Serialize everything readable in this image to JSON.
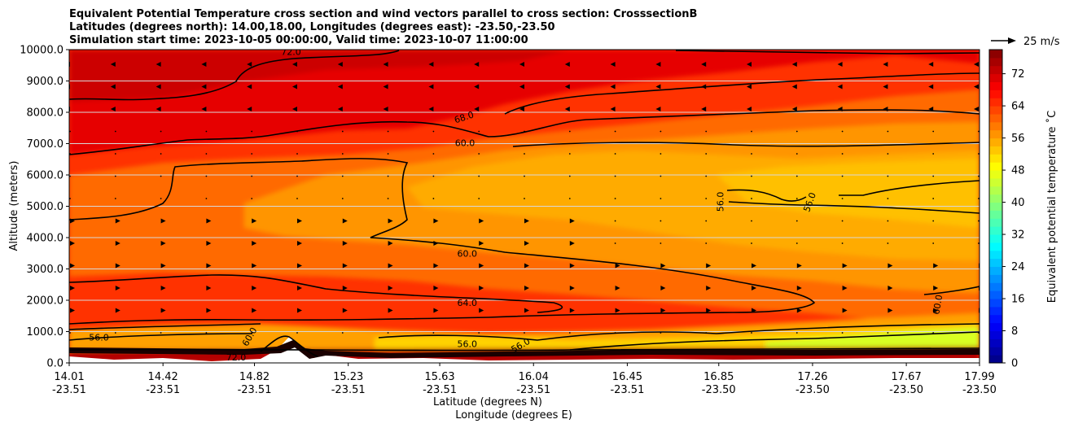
{
  "chart_data": {
    "type": "heatmap",
    "title": [
      "Equivalent Potential Temperature cross section and wind vectors parallel to cross section: CrosssectionB",
      "Latitudes (degrees north): 14.00,18.00, Longitudes (degrees east): -23.50,-23.50",
      "Simulation start time: 2023-10-05 00:00:00, Valid time: 2023-10-07 11:00:00"
    ],
    "xlabel": "Latitude (degrees N)",
    "xlabel2": "Longitude (degrees E)",
    "ylabel": "Altitude (meters)",
    "x_ticks": [
      {
        "lat": "14.01",
        "lon": "-23.51"
      },
      {
        "lat": "14.42",
        "lon": "-23.51"
      },
      {
        "lat": "14.82",
        "lon": "-23.51"
      },
      {
        "lat": "15.23",
        "lon": "-23.51"
      },
      {
        "lat": "15.63",
        "lon": "-23.51"
      },
      {
        "lat": "16.04",
        "lon": "-23.51"
      },
      {
        "lat": "16.45",
        "lon": "-23.51"
      },
      {
        "lat": "16.85",
        "lon": "-23.50"
      },
      {
        "lat": "17.26",
        "lon": "-23.50"
      },
      {
        "lat": "17.67",
        "lon": "-23.50"
      },
      {
        "lat": "17.99",
        "lon": "-23.50"
      }
    ],
    "y_ticks": [
      "0.0",
      "1000.0",
      "2000.0",
      "3000.0",
      "4000.0",
      "5000.0",
      "6000.0",
      "7000.0",
      "8000.0",
      "9000.0",
      "10000.0"
    ],
    "ylim": [
      0,
      10000
    ],
    "grid": "horizontal",
    "colorbar": {
      "label": "Equivalent potential temperature ˚C",
      "ticks": [
        "0",
        "8",
        "16",
        "24",
        "32",
        "40",
        "48",
        "56",
        "64",
        "72"
      ],
      "range": [
        0,
        78
      ],
      "step": 2,
      "colormap": "jet"
    },
    "quiver_key": {
      "label": "25 m/s"
    },
    "contour_labels": [
      {
        "text": "72.0",
        "x": 14.98,
        "y": 9930,
        "rot": 0
      },
      {
        "text": "68.0",
        "x": 15.74,
        "y": 7850,
        "rot": -18
      },
      {
        "text": "60.0",
        "x": 15.74,
        "y": 7030,
        "rot": 0
      },
      {
        "text": "56.0",
        "x": 16.87,
        "y": 5250,
        "rot": -90
      },
      {
        "text": "56.0",
        "x": 17.26,
        "y": 5200,
        "rot": -70
      },
      {
        "text": "60.0",
        "x": 15.75,
        "y": 3500,
        "rot": 0
      },
      {
        "text": "64.0",
        "x": 15.75,
        "y": 1920,
        "rot": 0
      },
      {
        "text": "60.0",
        "x": 17.82,
        "y": 1950,
        "rot": -80
      },
      {
        "text": "56.0",
        "x": 14.14,
        "y": 820,
        "rot": 0
      },
      {
        "text": "60.0",
        "x": 14.81,
        "y": 890,
        "rot": -60
      },
      {
        "text": "56.0",
        "x": 15.75,
        "y": 610,
        "rot": 0
      },
      {
        "text": "56.0",
        "x": 15.99,
        "y": 580,
        "rot": -30
      },
      {
        "text": "72.0",
        "x": 14.74,
        "y": 180,
        "rot": 0
      }
    ]
  }
}
